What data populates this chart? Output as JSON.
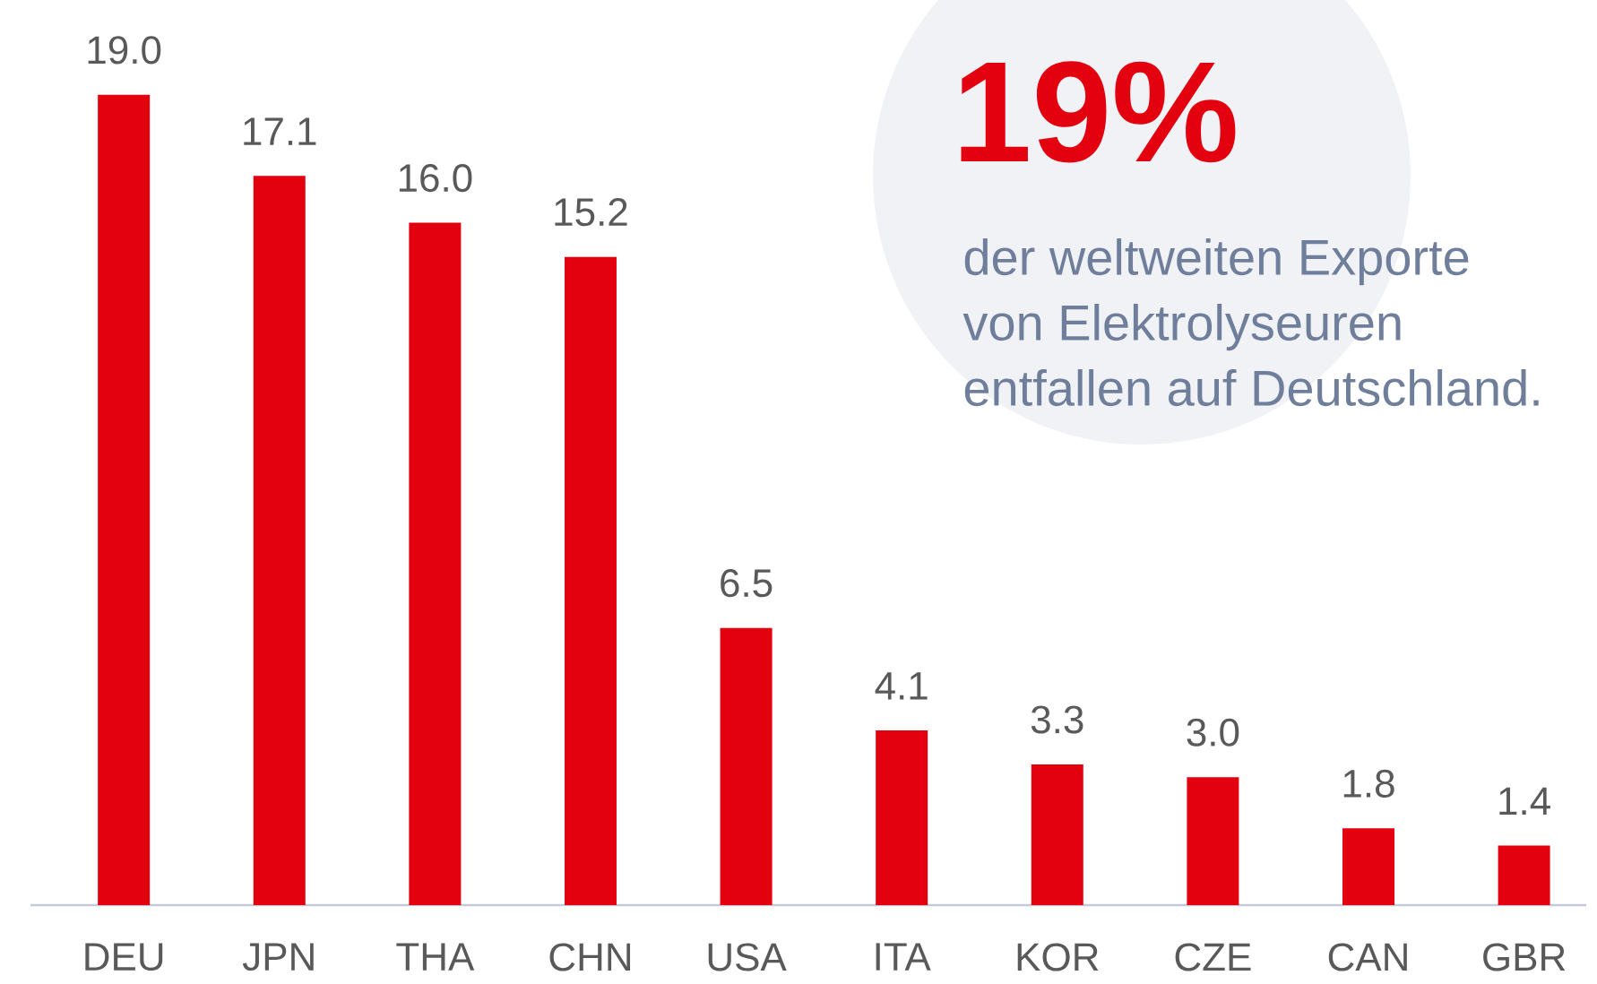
{
  "chart_data": {
    "type": "bar",
    "categories": [
      "DEU",
      "JPN",
      "THA",
      "CHN",
      "USA",
      "ITA",
      "KOR",
      "CZE",
      "CAN",
      "GBR"
    ],
    "values": [
      19.0,
      17.1,
      16.0,
      15.2,
      6.5,
      4.1,
      3.3,
      3.0,
      1.8,
      1.4
    ],
    "value_labels": [
      "19.0",
      "17.1",
      "16.0",
      "15.2",
      "6.5",
      "4.1",
      "3.3",
      "3.0",
      "1.8",
      "1.4"
    ],
    "color": "#e3000f",
    "annotations": [
      "19%",
      "der weltweiten Exporte von Elektrolyseuren entfallen auf Deutschland."
    ]
  }
}
